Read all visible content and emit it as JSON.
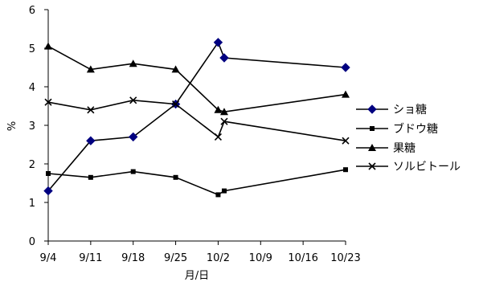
{
  "chart_data": {
    "type": "line",
    "xlabel": "月/日",
    "ylabel": "%",
    "ylim": [
      0,
      6
    ],
    "y_ticks": [
      0,
      1,
      2,
      3,
      4,
      5,
      6
    ],
    "x_tick_labels": [
      "9/4",
      "9/11",
      "9/18",
      "9/25",
      "10/2",
      "10/9",
      "10/16",
      "10/23"
    ],
    "x_tick_days": [
      0,
      7,
      14,
      21,
      28,
      35,
      42,
      49
    ],
    "grid": false,
    "legend_position": "right",
    "series": [
      {
        "name": "ショ糖",
        "marker": "diamond",
        "color": "#000080",
        "points": [
          {
            "x": "9/4",
            "y": 1.3
          },
          {
            "x": "9/11",
            "y": 2.6
          },
          {
            "x": "9/18",
            "y": 2.7
          },
          {
            "x": "9/25",
            "y": 3.55
          },
          {
            "x": "10/2",
            "y": 5.15
          },
          {
            "x": "10/3",
            "y": 4.75
          },
          {
            "x": "10/23",
            "y": 4.5
          }
        ]
      },
      {
        "name": "ブドウ糖",
        "marker": "square",
        "color": "#000000",
        "points": [
          {
            "x": "9/4",
            "y": 1.75
          },
          {
            "x": "9/11",
            "y": 1.65
          },
          {
            "x": "9/18",
            "y": 1.8
          },
          {
            "x": "9/25",
            "y": 1.65
          },
          {
            "x": "10/2",
            "y": 1.2
          },
          {
            "x": "10/3",
            "y": 1.3
          },
          {
            "x": "10/23",
            "y": 1.85
          }
        ]
      },
      {
        "name": "果糖",
        "marker": "triangle",
        "color": "#000000",
        "points": [
          {
            "x": "9/4",
            "y": 5.05
          },
          {
            "x": "9/11",
            "y": 4.45
          },
          {
            "x": "9/18",
            "y": 4.6
          },
          {
            "x": "9/25",
            "y": 4.45
          },
          {
            "x": "10/2",
            "y": 3.4
          },
          {
            "x": "10/3",
            "y": 3.35
          },
          {
            "x": "10/23",
            "y": 3.8
          }
        ]
      },
      {
        "name": "ソルビトール",
        "marker": "x",
        "color": "#000000",
        "points": [
          {
            "x": "9/4",
            "y": 3.6
          },
          {
            "x": "9/11",
            "y": 3.4
          },
          {
            "x": "9/18",
            "y": 3.65
          },
          {
            "x": "9/25",
            "y": 3.55
          },
          {
            "x": "10/2",
            "y": 2.7
          },
          {
            "x": "10/3",
            "y": 3.1
          },
          {
            "x": "10/23",
            "y": 2.6
          }
        ]
      }
    ]
  }
}
